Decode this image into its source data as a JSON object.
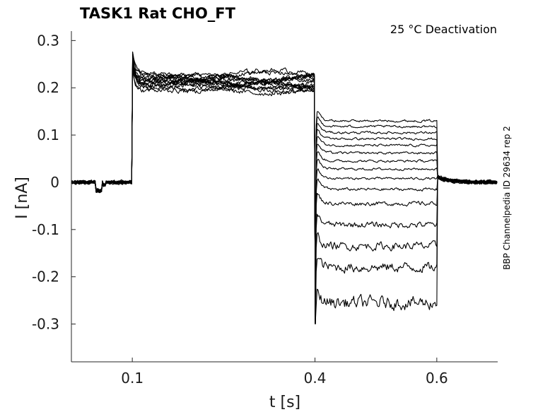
{
  "chart_data": {
    "type": "line",
    "title": "TASK1  Rat  CHO_FT",
    "annotation": "25 °C  Deactivation",
    "side_label": "BBP Channelpedia ID 29634 rep 2",
    "xlabel": "t [s]",
    "ylabel": "I [nA]",
    "xlim": [
      0.0,
      0.7
    ],
    "ylim": [
      -0.38,
      0.32
    ],
    "xticks": [
      0.1,
      0.4,
      0.6
    ],
    "xtick_labels": [
      "0.1",
      "0.4",
      "0.6"
    ],
    "yticks": [
      0.3,
      0.2,
      0.1,
      0,
      -0.1,
      -0.2,
      -0.3
    ],
    "ytick_labels": [
      "0.3",
      "0.2",
      "0.1",
      "0",
      "-0.1",
      "-0.2",
      "-0.3"
    ],
    "grid": false,
    "legend": "none",
    "stimulus_times": {
      "activation_start": 0.1,
      "deactivation_start": 0.4,
      "deactivation_end": 0.6
    },
    "series": [
      {
        "baseline": 0.0,
        "activation": 0.205,
        "tail": 0.13
      },
      {
        "baseline": 0.0,
        "activation": 0.21,
        "tail": 0.118
      },
      {
        "baseline": 0.0,
        "activation": 0.215,
        "tail": 0.105
      },
      {
        "baseline": 0.0,
        "activation": 0.205,
        "tail": 0.092
      },
      {
        "baseline": 0.0,
        "activation": 0.22,
        "tail": 0.078
      },
      {
        "baseline": 0.0,
        "activation": 0.21,
        "tail": 0.062
      },
      {
        "baseline": 0.0,
        "activation": 0.215,
        "tail": 0.045
      },
      {
        "baseline": 0.0,
        "activation": 0.2,
        "tail": 0.028
      },
      {
        "baseline": 0.0,
        "activation": 0.22,
        "tail": 0.008
      },
      {
        "baseline": 0.0,
        "activation": 0.21,
        "tail": -0.015
      },
      {
        "baseline": 0.0,
        "activation": 0.225,
        "tail": -0.045
      },
      {
        "baseline": 0.0,
        "activation": 0.205,
        "tail": -0.09
      },
      {
        "baseline": 0.0,
        "activation": 0.215,
        "tail": -0.135
      },
      {
        "baseline": 0.0,
        "activation": 0.21,
        "tail": -0.18
      },
      {
        "baseline": 0.0,
        "activation": 0.22,
        "tail": -0.255
      }
    ]
  }
}
